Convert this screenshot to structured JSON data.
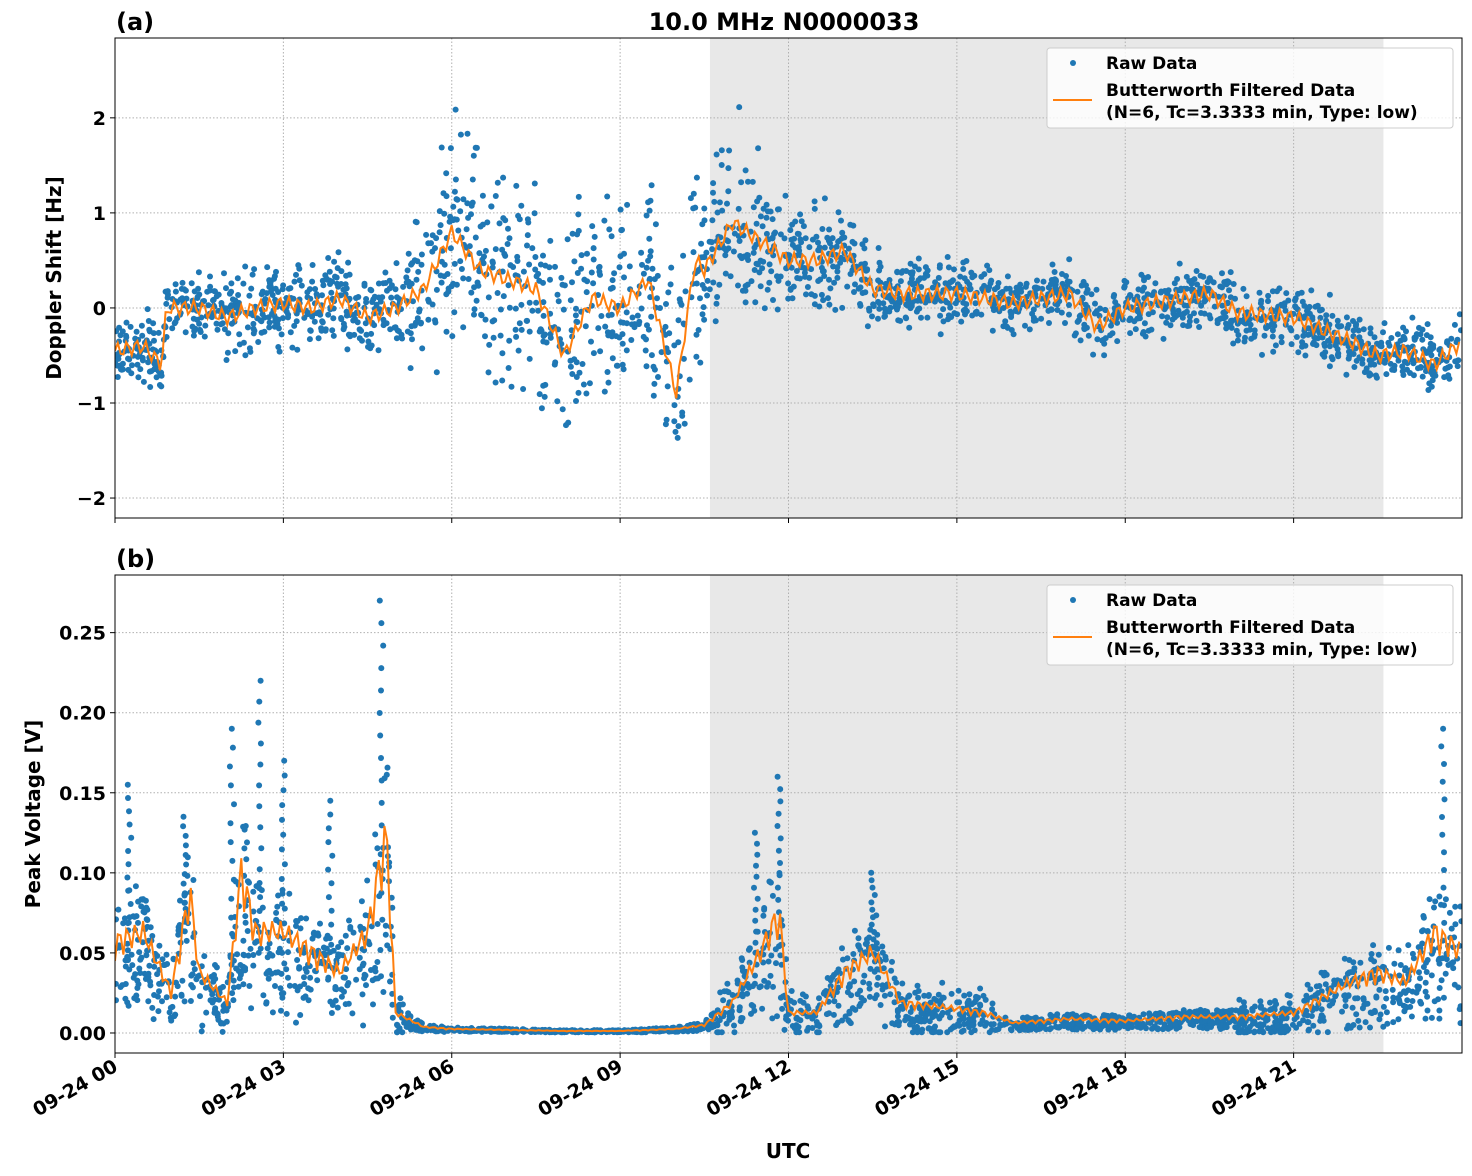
{
  "title": "10.0 MHz N0000033",
  "xlabel": "UTC",
  "colors": {
    "raw": "#1f77b4",
    "filtered": "#ff7f0e",
    "shade": "#e8e8e8"
  },
  "chart_data": [
    {
      "type": "scatter",
      "panel_label": "(a)",
      "ylabel": "Doppler Shift [Hz]",
      "xlim": [
        "09-24 00:00",
        "09-25 00:00"
      ],
      "ylim": [
        -2.21,
        2.84
      ],
      "yticks": [
        2,
        1,
        0,
        -1,
        -2
      ],
      "ytick_labels": [
        "2",
        "1",
        "0",
        "−1",
        "−2"
      ],
      "grid": true,
      "legend_position": "top-right",
      "shaded_interval": [
        "09-24 10:36",
        "09-24 22:36"
      ],
      "legend": [
        "Raw Data",
        "Butterworth Filtered Data",
        "(N=6, Tc=3.3333 min, Type: low)"
      ],
      "filtered": [
        [
          "00:00",
          -0.45
        ],
        [
          "00:30",
          -0.4
        ],
        [
          "00:50",
          -0.6
        ],
        [
          "00:55",
          0.0
        ],
        [
          "01:30",
          0.0
        ],
        [
          "02:00",
          -0.1
        ],
        [
          "02:30",
          0.0
        ],
        [
          "03:00",
          0.05
        ],
        [
          "03:30",
          0.0
        ],
        [
          "04:00",
          0.1
        ],
        [
          "04:30",
          -0.1
        ],
        [
          "05:00",
          0.0
        ],
        [
          "05:30",
          0.2
        ],
        [
          "06:00",
          0.8
        ],
        [
          "06:30",
          0.4
        ],
        [
          "07:00",
          0.3
        ],
        [
          "07:30",
          0.2
        ],
        [
          "08:00",
          -0.5
        ],
        [
          "08:30",
          0.1
        ],
        [
          "09:00",
          0.0
        ],
        [
          "09:30",
          0.3
        ],
        [
          "10:00",
          -0.9
        ],
        [
          "10:20",
          0.5
        ],
        [
          "10:30",
          0.4
        ],
        [
          "11:00",
          0.9
        ],
        [
          "11:30",
          0.7
        ],
        [
          "12:00",
          0.5
        ],
        [
          "12:30",
          0.5
        ],
        [
          "13:00",
          0.6
        ],
        [
          "13:30",
          0.2
        ],
        [
          "14:00",
          0.15
        ],
        [
          "15:00",
          0.15
        ],
        [
          "16:00",
          0.05
        ],
        [
          "17:00",
          0.15
        ],
        [
          "17:30",
          -0.2
        ],
        [
          "18:00",
          0.0
        ],
        [
          "19:00",
          0.1
        ],
        [
          "19:30",
          0.15
        ],
        [
          "20:00",
          -0.05
        ],
        [
          "21:00",
          -0.1
        ],
        [
          "22:00",
          -0.35
        ],
        [
          "22:30",
          -0.5
        ],
        [
          "23:00",
          -0.45
        ],
        [
          "23:30",
          -0.6
        ],
        [
          "24:00",
          -0.35
        ]
      ],
      "raw_spread": [
        [
          "00:00",
          0.25
        ],
        [
          "01:00",
          0.3
        ],
        [
          "05:00",
          0.35
        ],
        [
          "05:30",
          0.6
        ],
        [
          "06:00",
          0.9
        ],
        [
          "07:00",
          0.8
        ],
        [
          "10:00",
          0.8
        ],
        [
          "10:30",
          0.7
        ],
        [
          "11:00",
          0.8
        ],
        [
          "12:00",
          0.4
        ],
        [
          "13:00",
          0.35
        ],
        [
          "14:00",
          0.25
        ],
        [
          "24:00",
          0.25
        ]
      ]
    },
    {
      "type": "scatter",
      "panel_label": "(b)",
      "ylabel": "Peak Voltage [V]",
      "xlim": [
        "09-24 00:00",
        "09-25 00:00"
      ],
      "ylim": [
        -0.0125,
        0.286
      ],
      "yticks": [
        0.25,
        0.2,
        0.15,
        0.1,
        0.05,
        0.0
      ],
      "ytick_labels": [
        "0.25",
        "0.20",
        "0.15",
        "0.10",
        "0.05",
        "0.00"
      ],
      "grid": true,
      "legend_position": "top-right",
      "shaded_interval": [
        "09-24 10:36",
        "09-24 22:36"
      ],
      "legend": [
        "Raw Data",
        "Butterworth Filtered Data",
        "(N=6, Tc=3.3333 min, Type: low)"
      ],
      "filtered": [
        [
          "00:00",
          0.045
        ],
        [
          "00:30",
          0.05
        ],
        [
          "01:00",
          0.02
        ],
        [
          "01:20",
          0.07
        ],
        [
          "01:30",
          0.03
        ],
        [
          "02:00",
          0.015
        ],
        [
          "02:15",
          0.08
        ],
        [
          "02:30",
          0.05
        ],
        [
          "03:00",
          0.05
        ],
        [
          "03:30",
          0.04
        ],
        [
          "04:00",
          0.03
        ],
        [
          "04:30",
          0.05
        ],
        [
          "04:50",
          0.1
        ],
        [
          "05:00",
          0.01
        ],
        [
          "05:30",
          0.003
        ],
        [
          "06:00",
          0.002
        ],
        [
          "08:00",
          0.001
        ],
        [
          "09:00",
          0.001
        ],
        [
          "10:00",
          0.002
        ],
        [
          "10:30",
          0.004
        ],
        [
          "11:00",
          0.015
        ],
        [
          "11:30",
          0.04
        ],
        [
          "11:50",
          0.06
        ],
        [
          "12:00",
          0.01
        ],
        [
          "12:30",
          0.01
        ],
        [
          "13:00",
          0.03
        ],
        [
          "13:30",
          0.04
        ],
        [
          "14:00",
          0.015
        ],
        [
          "15:00",
          0.012
        ],
        [
          "15:30",
          0.01
        ],
        [
          "16:00",
          0.005
        ],
        [
          "17:00",
          0.007
        ],
        [
          "18:00",
          0.006
        ],
        [
          "19:00",
          0.008
        ],
        [
          "20:00",
          0.008
        ],
        [
          "21:00",
          0.01
        ],
        [
          "22:00",
          0.025
        ],
        [
          "22:30",
          0.03
        ],
        [
          "23:00",
          0.025
        ],
        [
          "23:30",
          0.05
        ],
        [
          "24:00",
          0.04
        ]
      ],
      "raw_peaks": [
        [
          "00:15",
          0.155
        ],
        [
          "01:15",
          0.135
        ],
        [
          "02:05",
          0.19
        ],
        [
          "02:35",
          0.22
        ],
        [
          "03:00",
          0.17
        ],
        [
          "03:50",
          0.145
        ],
        [
          "04:45",
          0.27
        ],
        [
          "11:25",
          0.125
        ],
        [
          "11:50",
          0.16
        ],
        [
          "13:30",
          0.1
        ],
        [
          "23:40",
          0.19
        ]
      ]
    }
  ],
  "xtick_labels": [
    "09-24 00",
    "09-24 03",
    "09-24 06",
    "09-24 09",
    "09-24 12",
    "09-24 15",
    "09-24 18",
    "09-24 21"
  ]
}
